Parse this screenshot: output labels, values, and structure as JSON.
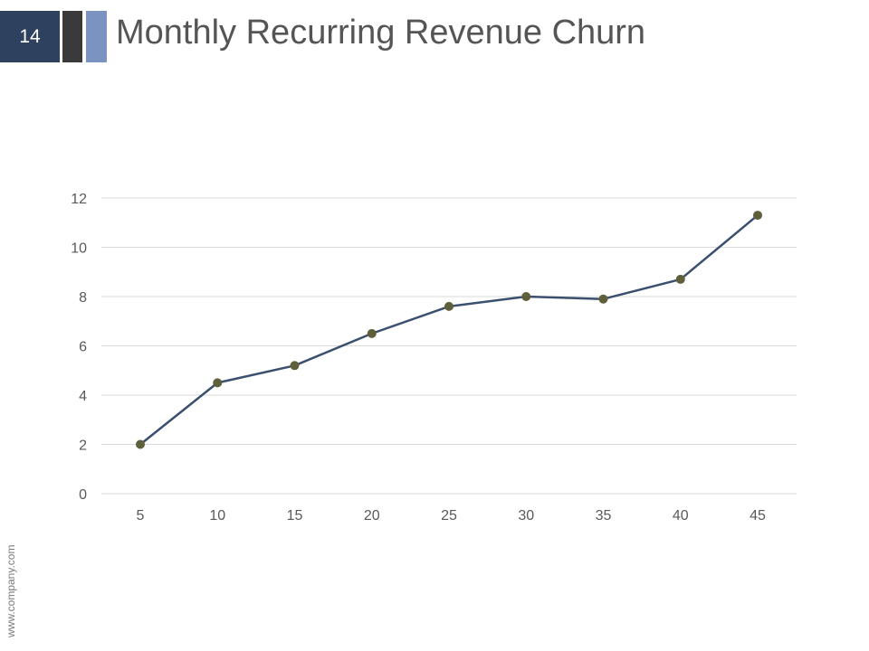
{
  "slide": {
    "number": "14",
    "title": "Monthly Recurring Revenue Churn",
    "footer": "www.company.com"
  },
  "colors": {
    "number_box": "#2e4260",
    "accent_dark": "#3a3a3a",
    "accent_light": "#7a93c1",
    "line": "#3b4f6e",
    "marker": "#5f5f3c",
    "grid": "#d9d9d9"
  },
  "chart_data": {
    "type": "line",
    "x": [
      5,
      10,
      15,
      20,
      25,
      30,
      35,
      40,
      45
    ],
    "series": [
      {
        "values": [
          2.0,
          4.5,
          5.2,
          6.5,
          7.6,
          8.0,
          7.9,
          8.7,
          11.3
        ]
      }
    ],
    "xticks": [
      "5",
      "10",
      "15",
      "20",
      "25",
      "30",
      "35",
      "40",
      "45"
    ],
    "yticks": [
      "0",
      "2",
      "4",
      "6",
      "8",
      "10",
      "12"
    ],
    "ylim": [
      0,
      12
    ],
    "grid": true,
    "legend": "none"
  }
}
